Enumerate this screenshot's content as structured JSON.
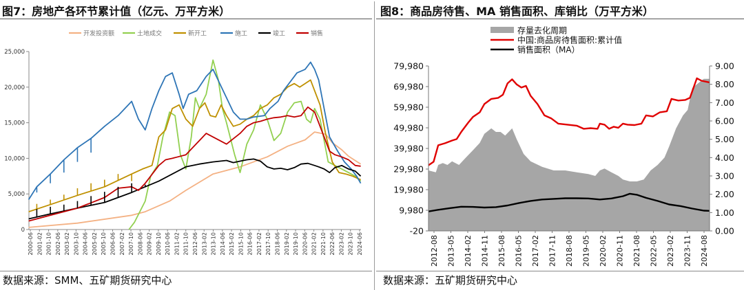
{
  "left_panel": {
    "title": "图7：房地产各环节累计值（亿元、万平方米）",
    "source": "数据来源：SMM、五矿期货研究中心"
  },
  "right_panel": {
    "title": "图8：商品房待售、MA 销售面积、库销比（万平方米）",
    "source": "数据来源：五矿期货研究中心"
  },
  "chart_data": [
    {
      "type": "line",
      "title": "房地产各环节累计值（亿元、万平方米）",
      "ylim": [
        0,
        25000
      ],
      "yticks": [
        0,
        5000,
        10000,
        15000,
        20000,
        25000
      ],
      "ytick_labels": [
        "0",
        "5,000",
        "10,000",
        "15,000",
        "20,000",
        "25,000"
      ],
      "xlim": [
        2000.42,
        2024.92
      ],
      "xtick_labels": [
        "2000-06",
        "2001-02",
        "2001-10",
        "2002-06",
        "2003-02",
        "2003-10",
        "2004-06",
        "2005-02",
        "2005-10",
        "2006-06",
        "2007-02",
        "2007-10",
        "2008-06",
        "2009-02",
        "2009-10",
        "2010-06",
        "2011-02",
        "2011-10",
        "2012-06",
        "2013-02",
        "2013-10",
        "2014-06",
        "2015-02",
        "2015-10",
        "2016-06",
        "2017-02",
        "2017-10",
        "2018-06",
        "2019-02",
        "2019-10",
        "2020-06",
        "2021-02",
        "2021-10",
        "2022-06",
        "2023-02",
        "2023-10",
        "2024-06"
      ],
      "legend_position": "top",
      "series": [
        {
          "name": "开发投资额",
          "color": "#f4b183",
          "x": [
            2000.4,
            2004.0,
            2008.0,
            2009.0,
            2010.8,
            2012.0,
            2014.0,
            2016.0,
            2018.0,
            2019.5,
            2020.8,
            2021.5,
            2022.3,
            2022.8,
            2023.5,
            2024.0,
            2024.9
          ],
          "y": [
            300,
            900,
            2000,
            2500,
            4000,
            5500,
            7800,
            8800,
            10200,
            11700,
            12600,
            13700,
            13400,
            12200,
            11200,
            10300,
            9200
          ]
        },
        {
          "name": "土地成交",
          "color": "#92d050",
          "x": [
            2007.8,
            2008.2,
            2009.0,
            2009.4,
            2009.9,
            2010.3,
            2010.8,
            2011.2,
            2011.6,
            2012.0,
            2012.4,
            2012.7,
            2013.0,
            2013.5,
            2014.0,
            2014.4,
            2014.7,
            2015.0,
            2015.6,
            2016.0,
            2016.5,
            2017.0,
            2017.5,
            2018.0,
            2018.5,
            2019.0,
            2019.5,
            2020.0,
            2020.5,
            2020.9,
            2021.2,
            2021.5,
            2021.9,
            2022.2,
            2022.5,
            2023.0,
            2023.5,
            2024.0,
            2024.5,
            2024.9
          ],
          "y": [
            0,
            1000,
            4000,
            7500,
            9000,
            13000,
            16500,
            16000,
            10500,
            8500,
            13000,
            18500,
            17000,
            19000,
            23800,
            21000,
            17000,
            15000,
            10500,
            8000,
            12000,
            14000,
            17500,
            15500,
            12500,
            13500,
            16500,
            17800,
            18000,
            15500,
            15000,
            17000,
            15500,
            12500,
            9500,
            9000,
            8500,
            8000,
            7500,
            6800
          ]
        },
        {
          "name": "新开工",
          "color": "#bf9000",
          "x": [
            2000.4,
            2002.0,
            2004.0,
            2006.0,
            2008.0,
            2008.8,
            2009.5,
            2010.0,
            2010.5,
            2011.0,
            2011.5,
            2012.0,
            2012.5,
            2013.0,
            2013.4,
            2013.8,
            2014.2,
            2014.6,
            2015.0,
            2015.5,
            2016.0,
            2016.5,
            2017.0,
            2017.5,
            2018.0,
            2018.5,
            2019.0,
            2019.5,
            2020.0,
            2020.4,
            2020.8,
            2021.2,
            2021.5,
            2021.9,
            2022.3,
            2022.8,
            2023.3,
            2023.8,
            2024.3,
            2024.9
          ],
          "y": [
            2500,
            3500,
            4800,
            6000,
            7800,
            8500,
            9000,
            13000,
            14000,
            17000,
            17500,
            15500,
            14500,
            17000,
            17800,
            16000,
            15800,
            17500,
            16000,
            14500,
            14800,
            15500,
            16000,
            17000,
            17500,
            18500,
            19000,
            20000,
            20500,
            20000,
            20500,
            21000,
            19500,
            17500,
            13500,
            9500,
            8000,
            7800,
            7500,
            7000
          ]
        },
        {
          "name": "施工",
          "color": "#2e75b6",
          "x": [
            2000.4,
            2001.0,
            2002.0,
            2003.0,
            2004.0,
            2005.0,
            2006.0,
            2007.0,
            2008.0,
            2008.5,
            2009.0,
            2009.5,
            2010.0,
            2010.5,
            2011.0,
            2011.5,
            2011.8,
            2012.2,
            2012.8,
            2013.5,
            2014.0,
            2014.5,
            2015.0,
            2015.5,
            2016.0,
            2016.5,
            2017.0,
            2017.8,
            2018.2,
            2018.8,
            2019.2,
            2019.8,
            2020.2,
            2020.8,
            2021.2,
            2021.5,
            2021.8,
            2022.2,
            2022.6,
            2023.2,
            2023.7,
            2024.2,
            2024.6,
            2024.9
          ],
          "y": [
            4200,
            6000,
            7800,
            9800,
            11500,
            12800,
            14500,
            16000,
            18000,
            15500,
            14000,
            17000,
            19500,
            21500,
            22000,
            19000,
            17000,
            19000,
            19500,
            21500,
            22500,
            20500,
            18500,
            16500,
            15500,
            15500,
            15800,
            16000,
            17000,
            18000,
            19500,
            21000,
            22000,
            22500,
            23500,
            22500,
            21000,
            17000,
            13000,
            11000,
            9500,
            8500,
            7500,
            6500
          ]
        },
        {
          "name": "竣工",
          "color": "#000000",
          "x": [
            2000.4,
            2002.0,
            2004.0,
            2006.0,
            2008.0,
            2009.0,
            2010.0,
            2011.0,
            2012.0,
            2013.0,
            2014.0,
            2015.0,
            2015.5,
            2016.0,
            2016.5,
            2017.0,
            2017.5,
            2018.0,
            2018.5,
            2019.0,
            2019.5,
            2020.0,
            2020.5,
            2021.0,
            2021.5,
            2021.8,
            2022.2,
            2022.6,
            2023.0,
            2023.5,
            2024.0,
            2024.5,
            2024.9
          ],
          "y": [
            1500,
            2200,
            3000,
            3800,
            5200,
            6000,
            6800,
            7800,
            8800,
            9200,
            9500,
            9700,
            9400,
            9600,
            9800,
            9900,
            9600,
            8800,
            8500,
            8600,
            8400,
            8700,
            9200,
            9300,
            9000,
            8800,
            8500,
            8000,
            8700,
            9000,
            8500,
            8200,
            7500
          ]
        },
        {
          "name": "销售",
          "color": "#c00000",
          "x": [
            2000.4,
            2002.0,
            2004.0,
            2006.0,
            2007.0,
            2008.0,
            2008.5,
            2009.0,
            2010.0,
            2010.5,
            2011.0,
            2012.0,
            2013.0,
            2013.5,
            2014.0,
            2015.0,
            2016.0,
            2016.5,
            2017.0,
            2017.5,
            2018.0,
            2018.5,
            2019.0,
            2019.5,
            2020.0,
            2020.5,
            2021.0,
            2021.5,
            2021.8,
            2022.2,
            2022.6,
            2023.0,
            2023.5,
            2024.0,
            2024.5,
            2024.9
          ],
          "y": [
            1200,
            2000,
            3000,
            4500,
            5800,
            6000,
            5500,
            6500,
            9000,
            9800,
            10000,
            10500,
            12500,
            13500,
            13000,
            12000,
            13500,
            14500,
            15000,
            15200,
            15500,
            15700,
            15800,
            16000,
            15800,
            16000,
            17200,
            16500,
            15000,
            13000,
            11000,
            10500,
            10200,
            9800,
            9000,
            8900
          ]
        }
      ],
      "spikes": [
        {
          "series": "竣工",
          "x": [
            2001.0,
            2002.0,
            2003.0,
            2004.0,
            2005.0,
            2006.0,
            2007.0,
            2008.0,
            2009.0
          ],
          "peak": [
            2900,
            3200,
            3500,
            4000,
            4700,
            5300,
            6000,
            6500,
            6300
          ]
        },
        {
          "series": "新开工",
          "x": [
            2001.0,
            2002.0,
            2003.0,
            2004.0,
            2005.0,
            2006.0,
            2007.0,
            2008.0
          ],
          "peak": [
            3600,
            4200,
            4900,
            5800,
            6500,
            7000,
            7800,
            6800
          ]
        },
        {
          "series": "施工",
          "x": [
            2001.0,
            2002.0,
            2003.0,
            2004.0,
            2005.0
          ],
          "peak": [
            5200,
            6500,
            8000,
            9500,
            10800
          ]
        }
      ]
    },
    {
      "type": "area+line",
      "title": "商品房待售、MA 销售面积、库销比（万平方米）",
      "y_left_lim": [
        -20,
        79980
      ],
      "y_left_ticks": [
        -20,
        9980,
        19980,
        29980,
        39980,
        49980,
        59980,
        69980,
        79980
      ],
      "y_left_tick_labels": [
        "-20",
        "9,980",
        "19,980",
        "29,980",
        "39,980",
        "49,980",
        "59,980",
        "69,980",
        "79,980"
      ],
      "y_right_lim": [
        0,
        9
      ],
      "y_right_ticks": [
        0,
        1,
        2,
        3,
        4,
        5,
        6,
        7,
        8,
        9
      ],
      "y_right_tick_labels": [
        "0.00",
        "1.00",
        "2.00",
        "3.00",
        "4.00",
        "5.00",
        "6.00",
        "7.00",
        "8.00",
        "9.00"
      ],
      "xlim": [
        2012.58,
        2024.75
      ],
      "xtick_labels": [
        "2012-08",
        "2013-05",
        "2014-02",
        "2014-11",
        "2015-08",
        "2016-05",
        "2017-02",
        "2017-11",
        "2018-08",
        "2019-05",
        "2020-02",
        "2020-11",
        "2021-08",
        "2022-05",
        "2023-02",
        "2023-11",
        "2024-08"
      ],
      "legend_position": "top",
      "series": [
        {
          "name": "存量去化周期",
          "axis": "right",
          "style": "area",
          "color": "#a6a6a6",
          "x": [
            2012.58,
            2012.9,
            2013.0,
            2013.2,
            2013.4,
            2013.6,
            2013.9,
            2014.2,
            2014.5,
            2014.8,
            2015.0,
            2015.3,
            2015.5,
            2015.7,
            2015.9,
            2016.2,
            2016.4,
            2016.7,
            2017.0,
            2017.5,
            2018.0,
            2018.5,
            2019.0,
            2019.5,
            2019.8,
            2020.0,
            2020.2,
            2020.5,
            2020.8,
            2021.0,
            2021.3,
            2021.6,
            2021.9,
            2022.2,
            2022.5,
            2022.8,
            2023.0,
            2023.3,
            2023.6,
            2023.8,
            2024.0,
            2024.3,
            2024.5,
            2024.75
          ],
          "y": [
            3.3,
            3.2,
            3.6,
            3.7,
            3.6,
            3.8,
            3.6,
            4.0,
            4.4,
            4.8,
            5.3,
            5.6,
            5.4,
            5.4,
            5.2,
            5.6,
            5.0,
            4.2,
            3.8,
            3.5,
            3.3,
            3.3,
            3.2,
            3.1,
            3.0,
            3.3,
            3.4,
            3.2,
            3.0,
            2.8,
            2.7,
            2.7,
            2.8,
            3.3,
            3.6,
            4.0,
            4.6,
            5.6,
            6.3,
            6.6,
            7.8,
            8.1,
            8.3,
            8.3
          ]
        },
        {
          "name": "中国:商品房待售面积:累计值",
          "axis": "left",
          "style": "line",
          "color": "#e00000",
          "x": [
            2012.58,
            2012.8,
            2013.0,
            2013.3,
            2013.6,
            2013.8,
            2014.0,
            2014.3,
            2014.5,
            2014.8,
            2015.0,
            2015.3,
            2015.6,
            2015.8,
            2016.0,
            2016.2,
            2016.4,
            2016.6,
            2016.8,
            2017.0,
            2017.3,
            2017.6,
            2017.9,
            2018.2,
            2018.6,
            2019.0,
            2019.3,
            2019.6,
            2019.9,
            2020.0,
            2020.2,
            2020.4,
            2020.6,
            2020.8,
            2021.0,
            2021.2,
            2021.5,
            2021.8,
            2022.0,
            2022.3,
            2022.6,
            2022.9,
            2023.1,
            2023.4,
            2023.7,
            2023.9,
            2024.2,
            2024.4,
            2024.75
          ],
          "y": [
            31800,
            33500,
            41500,
            42500,
            43800,
            44500,
            48000,
            52500,
            55200,
            57500,
            61500,
            64000,
            64500,
            66000,
            71500,
            73500,
            71000,
            69500,
            70300,
            65500,
            61500,
            56000,
            54500,
            52000,
            51500,
            51000,
            49500,
            49800,
            49500,
            52000,
            51500,
            49500,
            50500,
            50000,
            52000,
            51500,
            51300,
            52000,
            56000,
            55500,
            57500,
            58000,
            64000,
            63200,
            63500,
            64500,
            74000,
            72800,
            72000
          ]
        },
        {
          "name": "销售面积（MA）",
          "axis": "left",
          "style": "line",
          "color": "#000000",
          "x": [
            2012.58,
            2013.0,
            2013.5,
            2014.0,
            2014.5,
            2015.0,
            2015.5,
            2016.0,
            2016.5,
            2017.0,
            2017.5,
            2018.0,
            2018.5,
            2019.0,
            2019.5,
            2020.0,
            2020.5,
            2021.0,
            2021.3,
            2021.6,
            2022.0,
            2022.5,
            2023.0,
            2023.5,
            2024.0,
            2024.5,
            2024.75
          ],
          "y": [
            9400,
            10200,
            11000,
            11700,
            11600,
            11300,
            11500,
            12300,
            13500,
            14500,
            15200,
            15500,
            15800,
            15800,
            15700,
            15200,
            15700,
            16800,
            18000,
            17500,
            16000,
            14500,
            12800,
            12000,
            10800,
            9800,
            9700
          ]
        }
      ]
    }
  ]
}
